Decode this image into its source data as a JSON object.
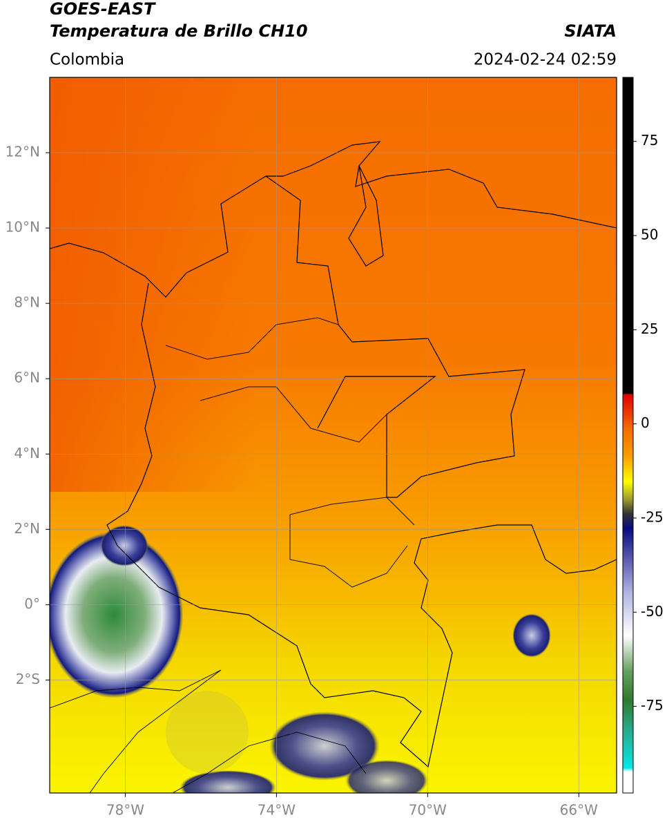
{
  "header": {
    "title": "GOES-EAST",
    "subtitle": "Temperatura de Brillo CH10",
    "region": "Colombia",
    "source": "SIATA",
    "datetime": "2024-02-24 02:59"
  },
  "map": {
    "xlim": [
      -80,
      -65
    ],
    "ylim": [
      -5,
      14
    ],
    "xticks": [
      {
        "value": -78,
        "label": "78°W"
      },
      {
        "value": -74,
        "label": "74°W"
      },
      {
        "value": -70,
        "label": "70°W"
      },
      {
        "value": -66,
        "label": "66°W"
      }
    ],
    "yticks": [
      {
        "value": 12,
        "label": "12°N"
      },
      {
        "value": 10,
        "label": "10°N"
      },
      {
        "value": 8,
        "label": "8°N"
      },
      {
        "value": 6,
        "label": "6°N"
      },
      {
        "value": 4,
        "label": "4°N"
      },
      {
        "value": 2,
        "label": "2°N"
      },
      {
        "value": 0,
        "label": "0°"
      },
      {
        "value": -2,
        "label": "2°S"
      }
    ],
    "grid": true
  },
  "colorbar": {
    "lim": [
      -98,
      92
    ],
    "ticks": [
      75,
      50,
      25,
      0,
      -25,
      -50,
      -75
    ]
  }
}
